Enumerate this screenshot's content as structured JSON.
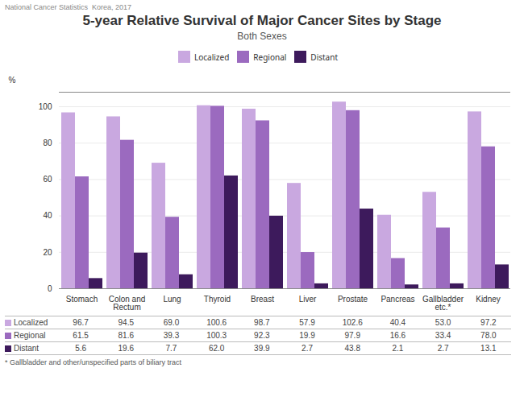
{
  "chart_data": {
    "type": "bar",
    "title": "5-year Relative Survival of Major Cancer Sites by Stage",
    "subtitle": "Both Sexes",
    "annotations": [
      "National Cancer Statistics  Korea, 2017",
      "* Gallbladder and other/unspecified parts of biliary tract"
    ],
    "categories": [
      "Stomach",
      "Colon and\nRectum",
      "Lung",
      "Thyroid",
      "Breast",
      "Liver",
      "Prostate",
      "Pancreas",
      "Gallbladder\netc.*",
      "Kidney"
    ],
    "series": [
      {
        "name": "Localized",
        "color": "#c9a8e0",
        "values": [
          96.7,
          94.5,
          69.0,
          100.6,
          98.7,
          57.9,
          102.6,
          40.4,
          53.0,
          97.2
        ],
        "value_labels": [
          "96.7",
          "94.5",
          "69.0",
          "100.6",
          "98.7",
          "57.9",
          "102.6",
          "40.4",
          "53.0",
          "97.2"
        ]
      },
      {
        "name": "Regional",
        "color": "#9b6abf",
        "values": [
          61.5,
          81.6,
          39.3,
          100.3,
          92.3,
          19.9,
          97.9,
          16.6,
          33.4,
          78.0
        ],
        "value_labels": [
          "61.5",
          "81.6",
          "39.3",
          "100.3",
          "92.3",
          "19.9",
          "97.9",
          "16.6",
          "33.4",
          "78.0"
        ]
      },
      {
        "name": "Distant",
        "color": "#3d1a5c",
        "values": [
          5.6,
          19.6,
          7.7,
          62.0,
          39.9,
          2.7,
          43.8,
          2.1,
          2.7,
          13.1
        ],
        "value_labels": [
          "5.6",
          "19.6",
          "7.7",
          "62.0",
          "39.9",
          "2.7",
          "43.8",
          "2.1",
          "2.7",
          "13.1"
        ]
      }
    ],
    "ylabel": "%",
    "ylim": [
      0,
      108
    ],
    "yticks": [
      0,
      20,
      40,
      60,
      80,
      100
    ],
    "grid": true,
    "legend": "top"
  }
}
